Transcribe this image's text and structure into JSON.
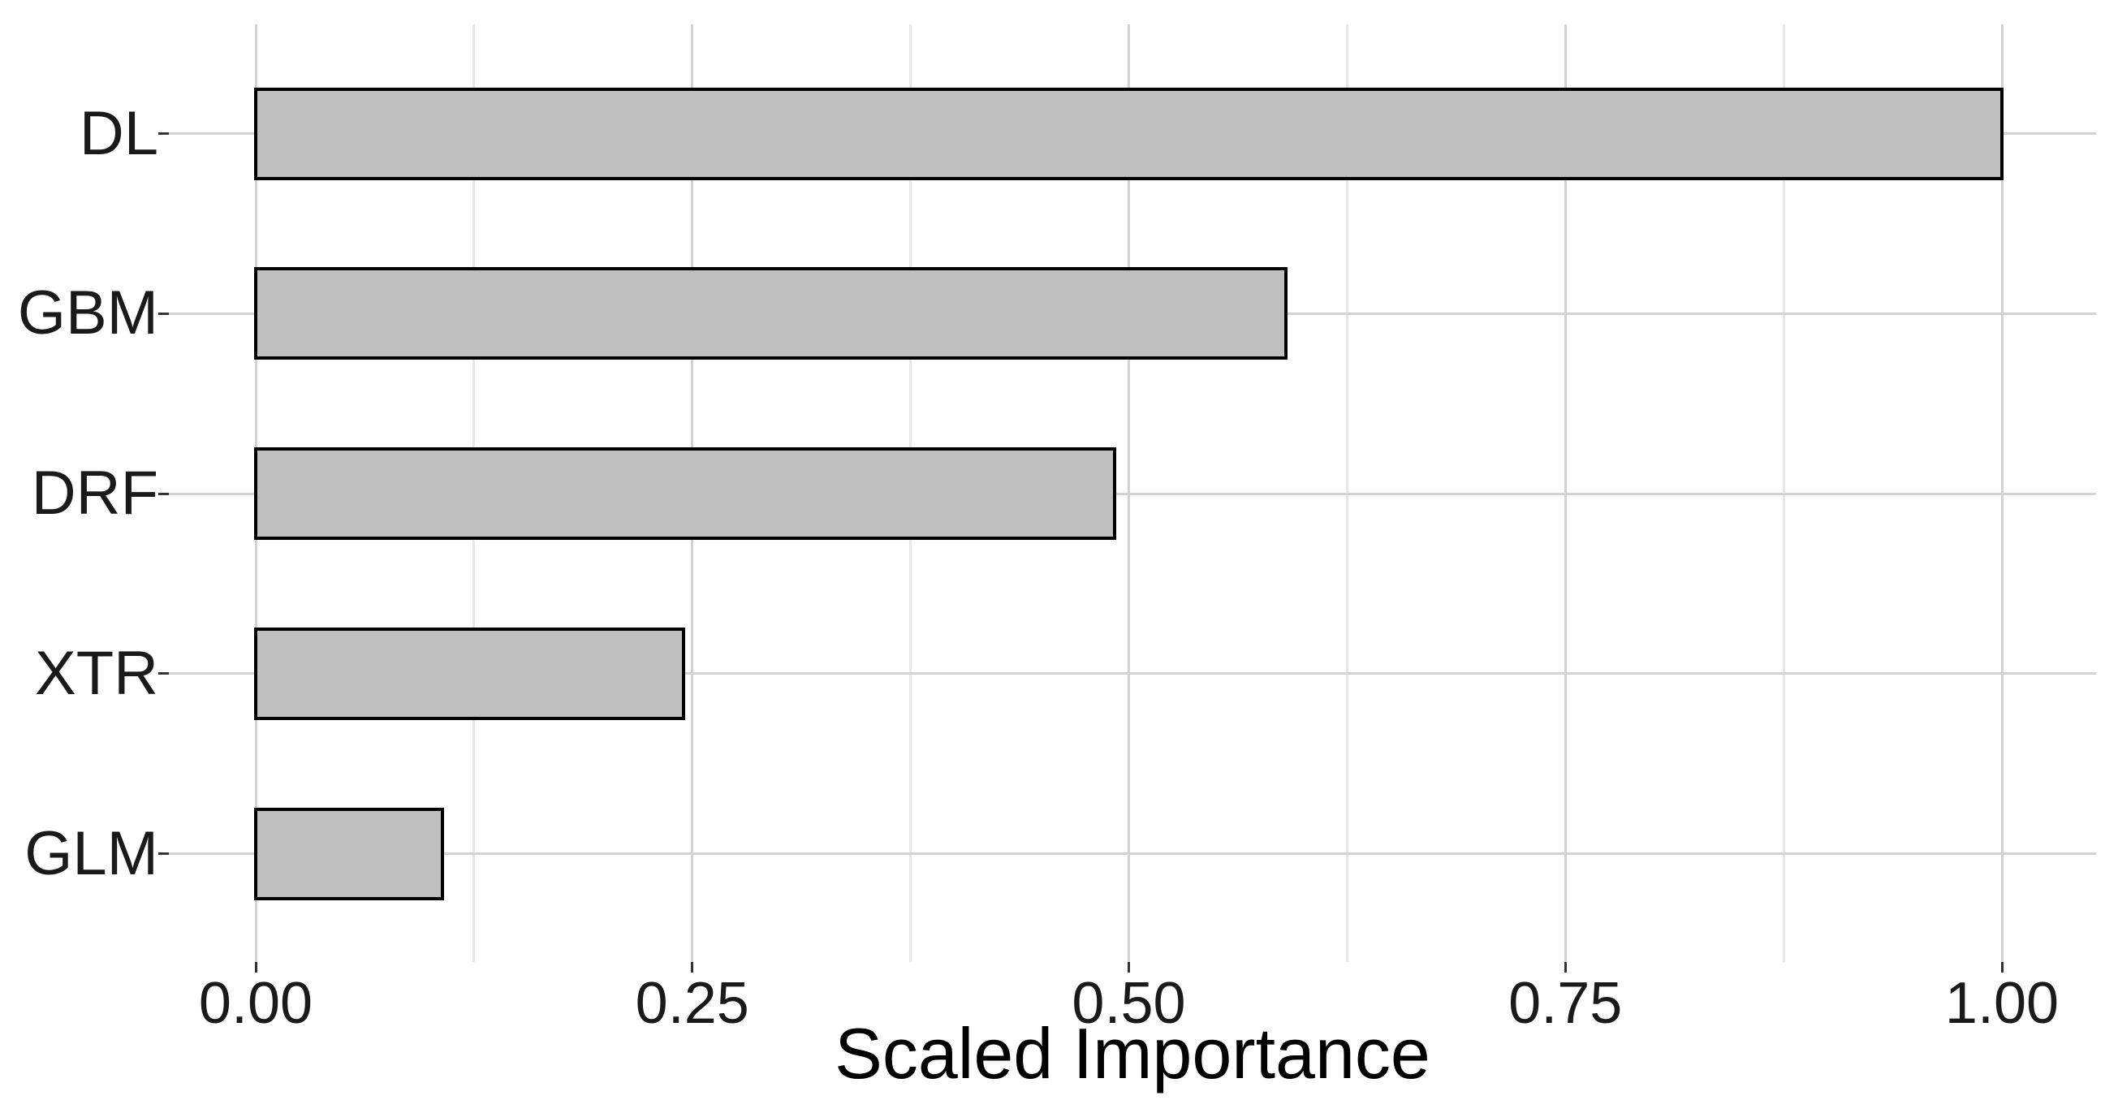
{
  "chart_data": {
    "type": "bar",
    "orientation": "horizontal",
    "title": "",
    "xlabel": "Scaled Importance",
    "ylabel": "",
    "categories": [
      "DL",
      "GBM",
      "DRF",
      "XTR",
      "GLM"
    ],
    "values": [
      1.0,
      0.59,
      0.492,
      0.245,
      0.107
    ],
    "xlim": [
      0,
      1
    ],
    "x_ticks": [
      {
        "value": 0.0,
        "label": "0.00"
      },
      {
        "value": 0.25,
        "label": "0.25"
      },
      {
        "value": 0.5,
        "label": "0.50"
      },
      {
        "value": 0.75,
        "label": "0.75"
      },
      {
        "value": 1.0,
        "label": "1.00"
      }
    ],
    "x_minor_gridlines": [
      0.125,
      0.375,
      0.625,
      0.875
    ],
    "grid": "on",
    "legend": "none",
    "colors": {
      "bar_fill": "#bfbfbf",
      "bar_border": "#000000",
      "grid_major": "#d3d3d3",
      "grid_minor": "#e7e7e7",
      "axis_text": "#1a1a1a",
      "background": "#ffffff"
    }
  }
}
